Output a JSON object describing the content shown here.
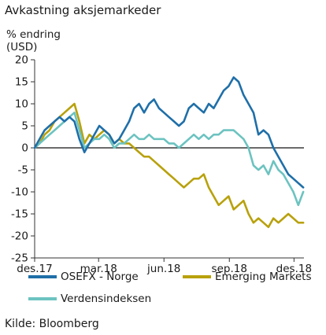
{
  "chart_data": {
    "type": "line",
    "title": "Avkastning aksjemarkeder",
    "ylabel_line1": "% endring",
    "ylabel_line2": "(USD)",
    "source": "Kilde: Bloomberg",
    "x_range": [
      "2017-12-01",
      "2018-12-15"
    ],
    "ylim": [
      -25,
      20
    ],
    "yticks": [
      20,
      15,
      10,
      5,
      0,
      -5,
      -10,
      -15,
      -20,
      -25
    ],
    "xticks": [
      {
        "label": "des.17",
        "date": "2017-12-01"
      },
      {
        "label": "mar.18",
        "date": "2018-03-01"
      },
      {
        "label": "jun.18",
        "date": "2018-06-01"
      },
      {
        "label": "sep.18",
        "date": "2018-09-01"
      },
      {
        "label": "des.18",
        "date": "2018-12-01"
      }
    ],
    "grid": false,
    "legend_position": "bottom",
    "series": [
      {
        "name": "OSEFX - Norge",
        "color": "#1f6fa8",
        "points": [
          [
            "2017-12-01",
            0
          ],
          [
            "2017-12-08",
            2
          ],
          [
            "2017-12-15",
            4
          ],
          [
            "2017-12-22",
            5
          ],
          [
            "2017-12-29",
            6
          ],
          [
            "2018-01-05",
            7
          ],
          [
            "2018-01-12",
            6
          ],
          [
            "2018-01-19",
            7
          ],
          [
            "2018-01-26",
            6
          ],
          [
            "2018-02-02",
            2
          ],
          [
            "2018-02-09",
            -1
          ],
          [
            "2018-02-16",
            1
          ],
          [
            "2018-02-23",
            3
          ],
          [
            "2018-03-02",
            5
          ],
          [
            "2018-03-09",
            4
          ],
          [
            "2018-03-16",
            3
          ],
          [
            "2018-03-23",
            1
          ],
          [
            "2018-03-30",
            2
          ],
          [
            "2018-04-06",
            4
          ],
          [
            "2018-04-13",
            6
          ],
          [
            "2018-04-20",
            9
          ],
          [
            "2018-04-27",
            10
          ],
          [
            "2018-05-04",
            8
          ],
          [
            "2018-05-11",
            10
          ],
          [
            "2018-05-18",
            11
          ],
          [
            "2018-05-25",
            9
          ],
          [
            "2018-06-01",
            8
          ],
          [
            "2018-06-08",
            7
          ],
          [
            "2018-06-15",
            6
          ],
          [
            "2018-06-22",
            5
          ],
          [
            "2018-06-29",
            6
          ],
          [
            "2018-07-06",
            9
          ],
          [
            "2018-07-13",
            10
          ],
          [
            "2018-07-20",
            9
          ],
          [
            "2018-07-27",
            8
          ],
          [
            "2018-08-03",
            10
          ],
          [
            "2018-08-10",
            9
          ],
          [
            "2018-08-17",
            11
          ],
          [
            "2018-08-24",
            13
          ],
          [
            "2018-08-31",
            14
          ],
          [
            "2018-09-07",
            16
          ],
          [
            "2018-09-14",
            15
          ],
          [
            "2018-09-21",
            12
          ],
          [
            "2018-09-28",
            10
          ],
          [
            "2018-10-05",
            8
          ],
          [
            "2018-10-12",
            3
          ],
          [
            "2018-10-19",
            4
          ],
          [
            "2018-10-26",
            3
          ],
          [
            "2018-11-02",
            0
          ],
          [
            "2018-11-09",
            -2
          ],
          [
            "2018-11-16",
            -4
          ],
          [
            "2018-11-23",
            -6
          ],
          [
            "2018-11-30",
            -7
          ],
          [
            "2018-12-07",
            -8
          ],
          [
            "2018-12-14",
            -9
          ]
        ]
      },
      {
        "name": "Emerging Markets",
        "color": "#b8a10c",
        "points": [
          [
            "2017-12-01",
            0
          ],
          [
            "2017-12-08",
            1
          ],
          [
            "2017-12-15",
            3
          ],
          [
            "2017-12-22",
            4
          ],
          [
            "2017-12-29",
            6
          ],
          [
            "2018-01-05",
            7
          ],
          [
            "2018-01-12",
            8
          ],
          [
            "2018-01-19",
            9
          ],
          [
            "2018-01-26",
            10
          ],
          [
            "2018-02-02",
            6
          ],
          [
            "2018-02-09",
            1
          ],
          [
            "2018-02-16",
            3
          ],
          [
            "2018-02-23",
            2
          ],
          [
            "2018-03-02",
            3
          ],
          [
            "2018-03-09",
            4
          ],
          [
            "2018-03-16",
            3
          ],
          [
            "2018-03-23",
            1
          ],
          [
            "2018-03-30",
            2
          ],
          [
            "2018-04-06",
            1
          ],
          [
            "2018-04-13",
            1
          ],
          [
            "2018-04-20",
            0
          ],
          [
            "2018-04-27",
            -1
          ],
          [
            "2018-05-04",
            -2
          ],
          [
            "2018-05-11",
            -2
          ],
          [
            "2018-05-18",
            -3
          ],
          [
            "2018-05-25",
            -4
          ],
          [
            "2018-06-01",
            -5
          ],
          [
            "2018-06-08",
            -6
          ],
          [
            "2018-06-15",
            -7
          ],
          [
            "2018-06-22",
            -8
          ],
          [
            "2018-06-29",
            -9
          ],
          [
            "2018-07-06",
            -8
          ],
          [
            "2018-07-13",
            -7
          ],
          [
            "2018-07-20",
            -7
          ],
          [
            "2018-07-27",
            -6
          ],
          [
            "2018-08-03",
            -9
          ],
          [
            "2018-08-10",
            -11
          ],
          [
            "2018-08-17",
            -13
          ],
          [
            "2018-08-24",
            -12
          ],
          [
            "2018-08-31",
            -11
          ],
          [
            "2018-09-07",
            -14
          ],
          [
            "2018-09-14",
            -13
          ],
          [
            "2018-09-21",
            -12
          ],
          [
            "2018-09-28",
            -15
          ],
          [
            "2018-10-05",
            -17
          ],
          [
            "2018-10-12",
            -16
          ],
          [
            "2018-10-19",
            -17
          ],
          [
            "2018-10-26",
            -18
          ],
          [
            "2018-11-02",
            -16
          ],
          [
            "2018-11-09",
            -17
          ],
          [
            "2018-11-16",
            -16
          ],
          [
            "2018-11-23",
            -15
          ],
          [
            "2018-11-30",
            -16
          ],
          [
            "2018-12-07",
            -17
          ],
          [
            "2018-12-14",
            -17
          ]
        ]
      },
      {
        "name": "Verdensindeksen",
        "color": "#6cc3c0",
        "points": [
          [
            "2017-12-01",
            0
          ],
          [
            "2017-12-08",
            1
          ],
          [
            "2017-12-15",
            2
          ],
          [
            "2017-12-22",
            3
          ],
          [
            "2017-12-29",
            4
          ],
          [
            "2018-01-05",
            5
          ],
          [
            "2018-01-12",
            6
          ],
          [
            "2018-01-19",
            7
          ],
          [
            "2018-01-26",
            8
          ],
          [
            "2018-02-02",
            4
          ],
          [
            "2018-02-09",
            0
          ],
          [
            "2018-02-16",
            1
          ],
          [
            "2018-02-23",
            2
          ],
          [
            "2018-03-02",
            2
          ],
          [
            "2018-03-09",
            3
          ],
          [
            "2018-03-16",
            2
          ],
          [
            "2018-03-23",
            0
          ],
          [
            "2018-03-30",
            1
          ],
          [
            "2018-04-06",
            1
          ],
          [
            "2018-04-13",
            2
          ],
          [
            "2018-04-20",
            3
          ],
          [
            "2018-04-27",
            2
          ],
          [
            "2018-05-04",
            2
          ],
          [
            "2018-05-11",
            3
          ],
          [
            "2018-05-18",
            2
          ],
          [
            "2018-05-25",
            2
          ],
          [
            "2018-06-01",
            2
          ],
          [
            "2018-06-08",
            1
          ],
          [
            "2018-06-15",
            1
          ],
          [
            "2018-06-22",
            0
          ],
          [
            "2018-06-29",
            1
          ],
          [
            "2018-07-06",
            2
          ],
          [
            "2018-07-13",
            3
          ],
          [
            "2018-07-20",
            2
          ],
          [
            "2018-07-27",
            3
          ],
          [
            "2018-08-03",
            2
          ],
          [
            "2018-08-10",
            3
          ],
          [
            "2018-08-17",
            3
          ],
          [
            "2018-08-24",
            4
          ],
          [
            "2018-08-31",
            4
          ],
          [
            "2018-09-07",
            4
          ],
          [
            "2018-09-14",
            3
          ],
          [
            "2018-09-21",
            2
          ],
          [
            "2018-09-28",
            0
          ],
          [
            "2018-10-05",
            -4
          ],
          [
            "2018-10-12",
            -5
          ],
          [
            "2018-10-19",
            -4
          ],
          [
            "2018-10-26",
            -6
          ],
          [
            "2018-11-02",
            -3
          ],
          [
            "2018-11-09",
            -5
          ],
          [
            "2018-11-16",
            -6
          ],
          [
            "2018-11-23",
            -8
          ],
          [
            "2018-11-30",
            -10
          ],
          [
            "2018-12-07",
            -13
          ],
          [
            "2018-12-14",
            -10
          ]
        ]
      }
    ]
  }
}
